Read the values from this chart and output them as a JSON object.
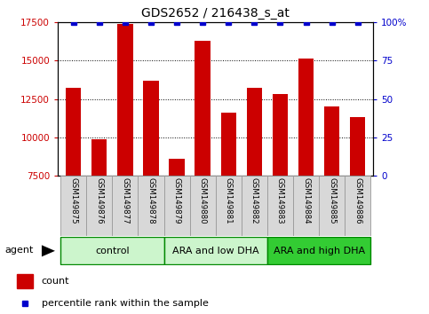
{
  "title": "GDS2652 / 216438_s_at",
  "samples": [
    "GSM149875",
    "GSM149876",
    "GSM149877",
    "GSM149878",
    "GSM149879",
    "GSM149880",
    "GSM149881",
    "GSM149882",
    "GSM149883",
    "GSM149884",
    "GSM149885",
    "GSM149886"
  ],
  "counts": [
    13200,
    9900,
    17400,
    13700,
    8600,
    16300,
    11600,
    13200,
    12800,
    15100,
    12000,
    11300
  ],
  "percentile_values": [
    100,
    100,
    100,
    100,
    100,
    100,
    100,
    100,
    100,
    100,
    100,
    100
  ],
  "bar_color": "#cc0000",
  "dot_color": "#0000cc",
  "ylim_left": [
    7500,
    17500
  ],
  "ylim_right": [
    0,
    100
  ],
  "yticks_left": [
    7500,
    10000,
    12500,
    15000,
    17500
  ],
  "yticks_right": [
    0,
    25,
    50,
    75,
    100
  ],
  "ytick_labels_right": [
    "0",
    "25",
    "50",
    "75",
    "100%"
  ],
  "groups": [
    {
      "label": "control",
      "start": 0,
      "end": 3,
      "color": "#ccf5cc"
    },
    {
      "label": "ARA and low DHA",
      "start": 4,
      "end": 7,
      "color": "#ccf5cc"
    },
    {
      "label": "ARA and high DHA",
      "start": 8,
      "end": 11,
      "color": "#33cc33"
    }
  ],
  "group_border_color": "#008800",
  "agent_label": "agent",
  "legend_count_label": "count",
  "legend_percentile_label": "percentile rank within the sample",
  "title_fontsize": 10,
  "tick_fontsize": 7.5,
  "label_fontsize": 8,
  "background_color": "#ffffff",
  "plot_bg_color": "#ffffff"
}
